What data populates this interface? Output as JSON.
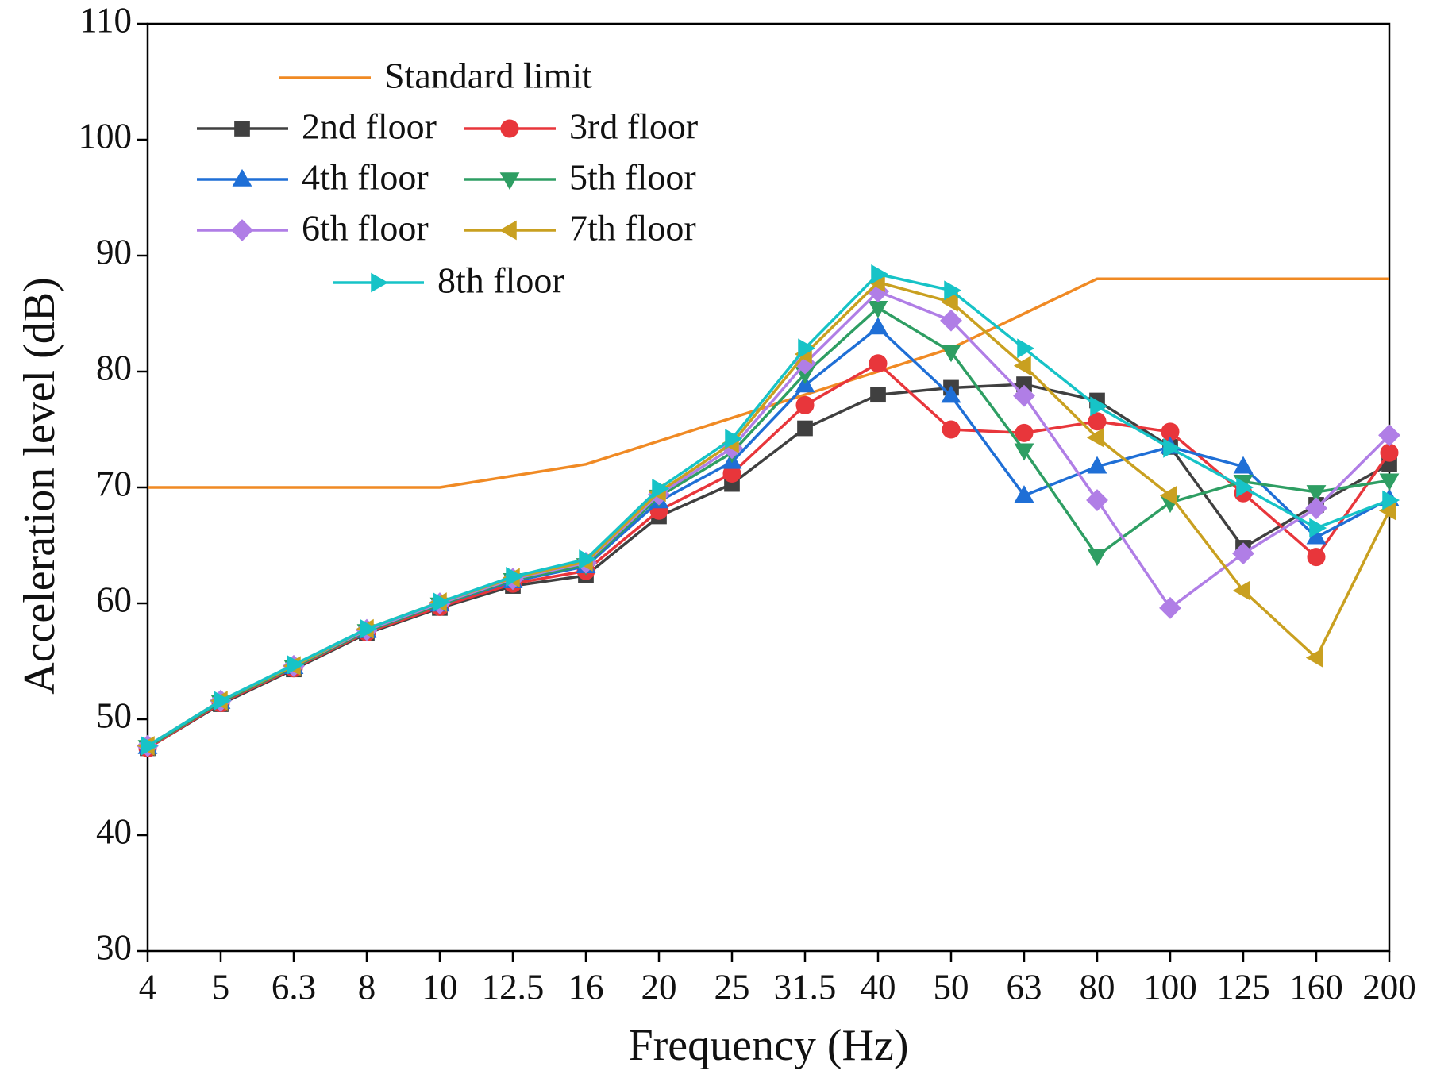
{
  "chart_data": {
    "type": "line",
    "x_label": "Frequency (Hz)",
    "y_label": "Acceleration level (dB)",
    "categories": [
      "4",
      "5",
      "6.3",
      "8",
      "10",
      "12.5",
      "16",
      "20",
      "25",
      "31.5",
      "40",
      "50",
      "63",
      "80",
      "100",
      "125",
      "160",
      "200"
    ],
    "ylim": [
      30,
      110
    ],
    "yticks": [
      30,
      40,
      50,
      60,
      70,
      80,
      90,
      100,
      110
    ],
    "legend": "upper left",
    "series": [
      {
        "name": "Standard limit",
        "color": "#f08a24",
        "marker": "none",
        "values": [
          70,
          70,
          70,
          70,
          70,
          71,
          72,
          74,
          76,
          78,
          80,
          82,
          85,
          88,
          88,
          88,
          88,
          88
        ]
      },
      {
        "name": "2nd floor",
        "color": "#404040",
        "marker": "square",
        "values": [
          47.5,
          51.3,
          54.3,
          57.4,
          59.6,
          61.5,
          62.4,
          67.5,
          70.3,
          75.1,
          78.0,
          78.6,
          78.9,
          77.5,
          73.5,
          64.8,
          68.5,
          72.0
        ]
      },
      {
        "name": "3rd floor",
        "color": "#e8363b",
        "marker": "circle",
        "values": [
          47.5,
          51.4,
          54.4,
          57.5,
          59.7,
          61.7,
          62.8,
          68.0,
          71.2,
          77.1,
          80.7,
          75.0,
          74.7,
          75.7,
          74.8,
          69.5,
          64.0,
          73.0
        ]
      },
      {
        "name": "4th floor",
        "color": "#1f6fd6",
        "marker": "triangle-up",
        "values": [
          47.6,
          51.5,
          54.5,
          57.6,
          59.9,
          61.9,
          63.2,
          68.8,
          72.2,
          78.8,
          83.8,
          77.9,
          69.3,
          71.8,
          73.5,
          71.8,
          65.7,
          69.0
        ]
      },
      {
        "name": "5th floor",
        "color": "#2e9e63",
        "marker": "triangle-down",
        "values": [
          47.6,
          51.5,
          54.5,
          57.6,
          59.9,
          62.0,
          63.3,
          69.2,
          73.0,
          79.8,
          85.5,
          81.7,
          73.2,
          64.1,
          68.7,
          70.5,
          69.6,
          70.6
        ]
      },
      {
        "name": "6th floor",
        "color": "#b07ee6",
        "marker": "diamond",
        "values": [
          47.7,
          51.6,
          54.6,
          57.7,
          60.0,
          62.1,
          63.5,
          69.4,
          73.4,
          80.7,
          86.9,
          84.4,
          77.9,
          68.9,
          59.6,
          64.3,
          68.2,
          74.5
        ]
      },
      {
        "name": "7th floor",
        "color": "#c9a020",
        "marker": "triangle-left",
        "values": [
          47.7,
          51.6,
          54.6,
          57.8,
          60.1,
          62.2,
          63.6,
          69.6,
          73.8,
          81.5,
          87.7,
          86.0,
          80.5,
          74.3,
          69.3,
          61.1,
          55.3,
          68.0
        ]
      },
      {
        "name": "8th floor",
        "color": "#17c3c7",
        "marker": "triangle-right",
        "values": [
          47.7,
          51.6,
          54.7,
          57.8,
          60.1,
          62.3,
          63.8,
          69.9,
          74.2,
          82.0,
          88.4,
          87.0,
          82.0,
          77.0,
          73.4,
          70.0,
          66.5,
          68.9
        ]
      }
    ]
  }
}
